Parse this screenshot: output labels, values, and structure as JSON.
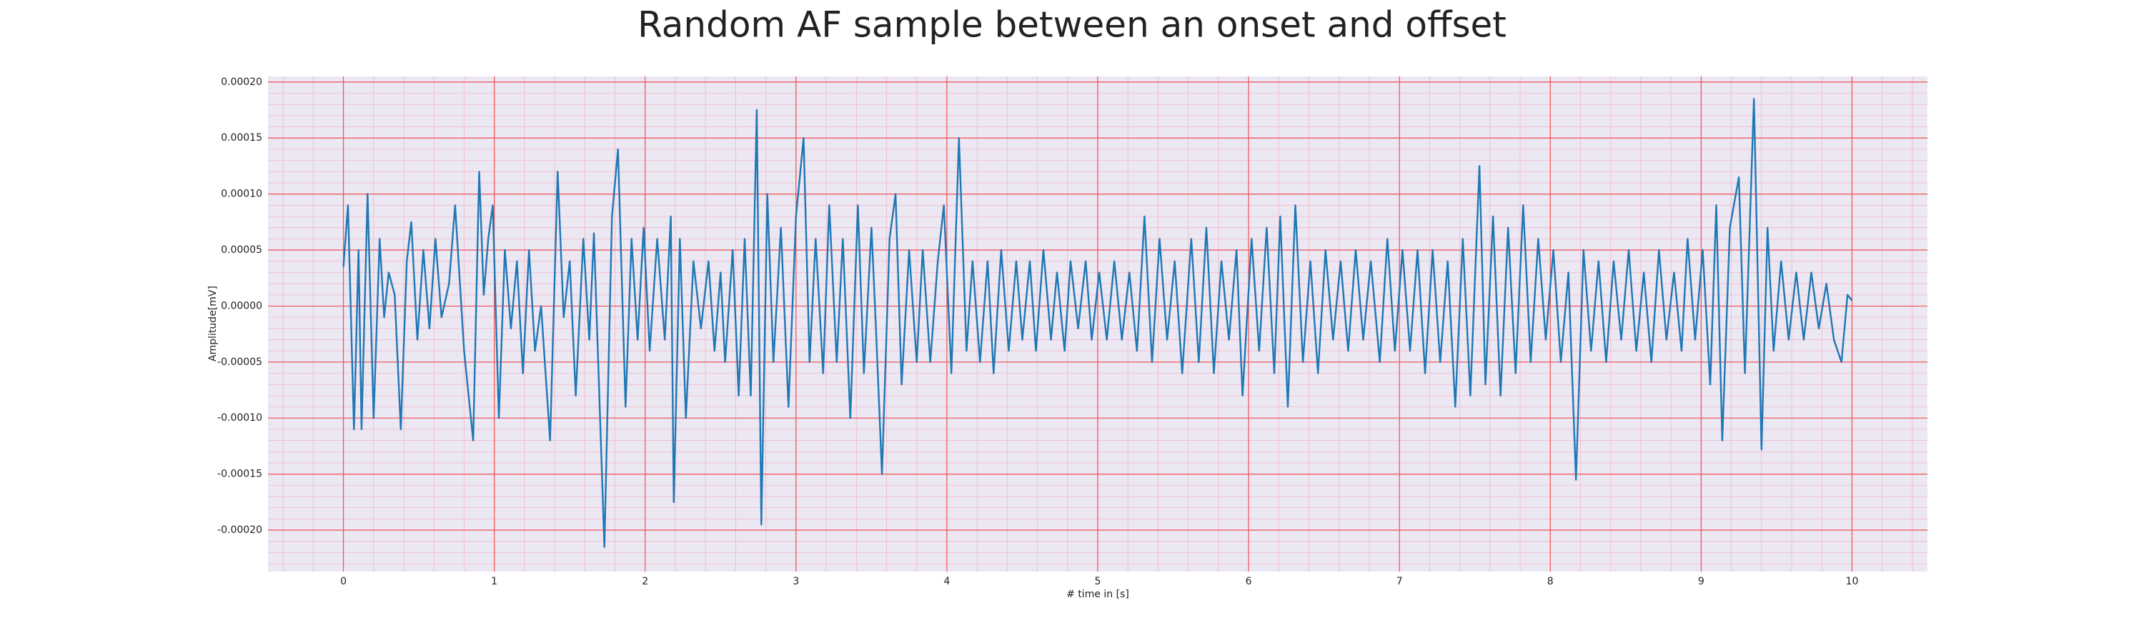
{
  "chart_data": {
    "type": "line",
    "title": "Random AF sample between an onset and offset",
    "xlabel": "# time in [s]",
    "ylabel": "Amplitude[mV]",
    "x": [
      0,
      0.03,
      0.07,
      0.1,
      0.12,
      0.16,
      0.2,
      0.24,
      0.27,
      0.3,
      0.34,
      0.38,
      0.42,
      0.45,
      0.49,
      0.53,
      0.57,
      0.61,
      0.65,
      0.7,
      0.74,
      0.8,
      0.86,
      0.9,
      0.93,
      0.96,
      0.99,
      1.03,
      1.07,
      1.11,
      1.15,
      1.19,
      1.23,
      1.27,
      1.31,
      1.37,
      1.42,
      1.46,
      1.5,
      1.54,
      1.59,
      1.63,
      1.66,
      1.73,
      1.78,
      1.82,
      1.87,
      1.91,
      1.95,
      1.99,
      2.03,
      2.08,
      2.13,
      2.17,
      2.19,
      2.23,
      2.27,
      2.32,
      2.37,
      2.42,
      2.46,
      2.5,
      2.53,
      2.58,
      2.62,
      2.66,
      2.7,
      2.74,
      2.77,
      2.81,
      2.85,
      2.9,
      2.95,
      3.0,
      3.05,
      3.09,
      3.13,
      3.18,
      3.22,
      3.27,
      3.31,
      3.36,
      3.41,
      3.45,
      3.5,
      3.53,
      3.57,
      3.62,
      3.66,
      3.7,
      3.75,
      3.8,
      3.84,
      3.89,
      3.94,
      3.98,
      4.03,
      4.08,
      4.13,
      4.17,
      4.22,
      4.27,
      4.31,
      4.36,
      4.41,
      4.46,
      4.5,
      4.55,
      4.59,
      4.64,
      4.69,
      4.73,
      4.78,
      4.82,
      4.87,
      4.92,
      4.96,
      5.01,
      5.06,
      5.11,
      5.16,
      5.21,
      5.26,
      5.31,
      5.36,
      5.41,
      5.46,
      5.51,
      5.56,
      5.62,
      5.67,
      5.72,
      5.77,
      5.82,
      5.87,
      5.92,
      5.96,
      6.02,
      6.07,
      6.12,
      6.17,
      6.21,
      6.26,
      6.31,
      6.36,
      6.41,
      6.46,
      6.51,
      6.56,
      6.61,
      6.66,
      6.71,
      6.76,
      6.81,
      6.87,
      6.92,
      6.97,
      7.02,
      7.07,
      7.12,
      7.17,
      7.22,
      7.27,
      7.32,
      7.37,
      7.42,
      7.47,
      7.53,
      7.57,
      7.62,
      7.67,
      7.72,
      7.77,
      7.82,
      7.87,
      7.92,
      7.97,
      8.02,
      8.07,
      8.12,
      8.17,
      8.22,
      8.27,
      8.32,
      8.37,
      8.42,
      8.47,
      8.52,
      8.57,
      8.62,
      8.67,
      8.72,
      8.77,
      8.82,
      8.87,
      8.91,
      8.96,
      9.01,
      9.06,
      9.1,
      9.14,
      9.19,
      9.25,
      9.29,
      9.35,
      9.4,
      9.44,
      9.48,
      9.53,
      9.58,
      9.63,
      9.68,
      9.73,
      9.78,
      9.83,
      9.88,
      9.93,
      9.97,
      10.0
    ],
    "series": [
      {
        "color": "#1f77b4",
        "values": [
          3.5e-05,
          9e-05,
          -0.00011,
          5e-05,
          -0.00011,
          0.0001,
          -0.0001,
          6e-05,
          -1e-05,
          3e-05,
          1e-05,
          -0.00011,
          4e-05,
          7.5e-05,
          -3e-05,
          5e-05,
          -2e-05,
          6e-05,
          -1e-05,
          2e-05,
          9e-05,
          -4e-05,
          -0.00012,
          0.00012,
          1e-05,
          6e-05,
          9e-05,
          -0.0001,
          5e-05,
          -2e-05,
          4e-05,
          -6e-05,
          5e-05,
          -4e-05,
          0,
          -0.00012,
          0.00012,
          -1e-05,
          4e-05,
          -8e-05,
          6e-05,
          -3e-05,
          6.5e-05,
          -0.000215,
          8e-05,
          0.00014,
          -9e-05,
          6e-05,
          -3e-05,
          7e-05,
          -4e-05,
          6e-05,
          -3e-05,
          8e-05,
          -0.000175,
          6e-05,
          -0.0001,
          4e-05,
          -2e-05,
          4e-05,
          -4e-05,
          3e-05,
          -5e-05,
          5e-05,
          -8e-05,
          6e-05,
          -8e-05,
          0.000175,
          -0.000195,
          0.0001,
          -5e-05,
          7e-05,
          -9e-05,
          8e-05,
          0.00015,
          -5e-05,
          6e-05,
          -6e-05,
          9e-05,
          -5e-05,
          6e-05,
          -0.0001,
          9e-05,
          -6e-05,
          7e-05,
          -2e-05,
          -0.00015,
          6e-05,
          0.0001,
          -7e-05,
          5e-05,
          -5e-05,
          5e-05,
          -5e-05,
          4e-05,
          9e-05,
          -6e-05,
          0.00015,
          -4e-05,
          4e-05,
          -5e-05,
          4e-05,
          -6e-05,
          5e-05,
          -4e-05,
          4e-05,
          -3e-05,
          4e-05,
          -4e-05,
          5e-05,
          -3e-05,
          3e-05,
          -4e-05,
          4e-05,
          -2e-05,
          4e-05,
          -3e-05,
          3e-05,
          -3e-05,
          4e-05,
          -3e-05,
          3e-05,
          -4e-05,
          8e-05,
          -5e-05,
          6e-05,
          -3e-05,
          4e-05,
          -6e-05,
          6e-05,
          -5e-05,
          7e-05,
          -6e-05,
          4e-05,
          -3e-05,
          5e-05,
          -8e-05,
          6e-05,
          -4e-05,
          7e-05,
          -6e-05,
          8e-05,
          -9e-05,
          9e-05,
          -5e-05,
          4e-05,
          -6e-05,
          5e-05,
          -3e-05,
          4e-05,
          -4e-05,
          5e-05,
          -3e-05,
          4e-05,
          -5e-05,
          6e-05,
          -4e-05,
          5e-05,
          -4e-05,
          5e-05,
          -6e-05,
          5e-05,
          -5e-05,
          4e-05,
          -9e-05,
          6e-05,
          -8e-05,
          0.000125,
          -7e-05,
          8e-05,
          -8e-05,
          7e-05,
          -6e-05,
          9e-05,
          -5e-05,
          6e-05,
          -3e-05,
          5e-05,
          -5e-05,
          3e-05,
          -0.000155,
          5e-05,
          -4e-05,
          4e-05,
          -5e-05,
          4e-05,
          -3e-05,
          5e-05,
          -4e-05,
          3e-05,
          -5e-05,
          5e-05,
          -3e-05,
          3e-05,
          -4e-05,
          6e-05,
          -3e-05,
          5e-05,
          -7e-05,
          9e-05,
          -0.00012,
          7e-05,
          0.000115,
          -6e-05,
          0.000185,
          -0.000128,
          7e-05,
          -4e-05,
          4e-05,
          -3e-05,
          3e-05,
          -3e-05,
          3e-05,
          -2e-05,
          2e-05,
          -3e-05,
          -5e-05,
          1e-05,
          5e-06
        ]
      }
    ],
    "xlim": [
      -0.5,
      10.5
    ],
    "xticks": [
      0,
      1,
      2,
      3,
      4,
      5,
      6,
      7,
      8,
      9,
      10
    ],
    "ylim": [
      -0.000237,
      0.000205
    ],
    "yticks": [
      {
        "value": -0.0002,
        "label": "-0.00020"
      },
      {
        "value": -0.00015,
        "label": "-0.00015"
      },
      {
        "value": -0.0001,
        "label": "-0.00010"
      },
      {
        "value": -5e-05,
        "label": "-0.00005"
      },
      {
        "value": 0,
        "label": "0.00000"
      },
      {
        "value": 5e-05,
        "label": "0.00005"
      },
      {
        "value": 0.0001,
        "label": "0.00010"
      },
      {
        "value": 0.00015,
        "label": "0.00015"
      },
      {
        "value": 0.0002,
        "label": "0.00020"
      }
    ],
    "grid": true,
    "minor_grid": true
  }
}
